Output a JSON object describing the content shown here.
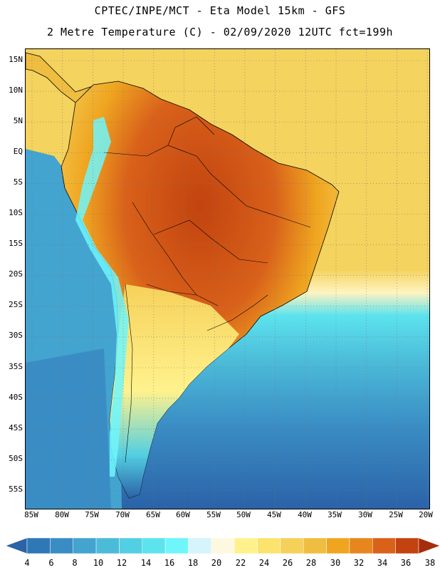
{
  "title": {
    "line1": "CPTEC/INPE/MCT -  Eta Model 15km - GFS",
    "line2": "2 Metre Temperature (C) - 02/09/2020 12UTC fct=199h"
  },
  "map": {
    "lat_labels": [
      "15N",
      "10N",
      "5N",
      "EQ",
      "5S",
      "10S",
      "15S",
      "20S",
      "25S",
      "30S",
      "35S",
      "40S",
      "45S",
      "50S",
      "55S"
    ],
    "lon_labels": [
      "85W",
      "80W",
      "75W",
      "70W",
      "65W",
      "60W",
      "55W",
      "50W",
      "45W",
      "40W",
      "35W",
      "30W",
      "25W",
      "20W"
    ]
  },
  "legend": {
    "ticks": [
      "4",
      "6",
      "8",
      "10",
      "12",
      "14",
      "16",
      "18",
      "20",
      "22",
      "24",
      "26",
      "28",
      "30",
      "32",
      "34",
      "36",
      "38"
    ],
    "colors": [
      "#2b62a8",
      "#2f78b6",
      "#3a8dc4",
      "#43a4cf",
      "#4cbbd9",
      "#52cfe2",
      "#5ce3ee",
      "#6ef6fb",
      "#d6f4fb",
      "#fff8e1",
      "#fff28d",
      "#fbe36e",
      "#f6d15a",
      "#efbd40",
      "#efa520",
      "#e8861e",
      "#d9611a",
      "#c2430f",
      "#a52d0c"
    ]
  }
}
